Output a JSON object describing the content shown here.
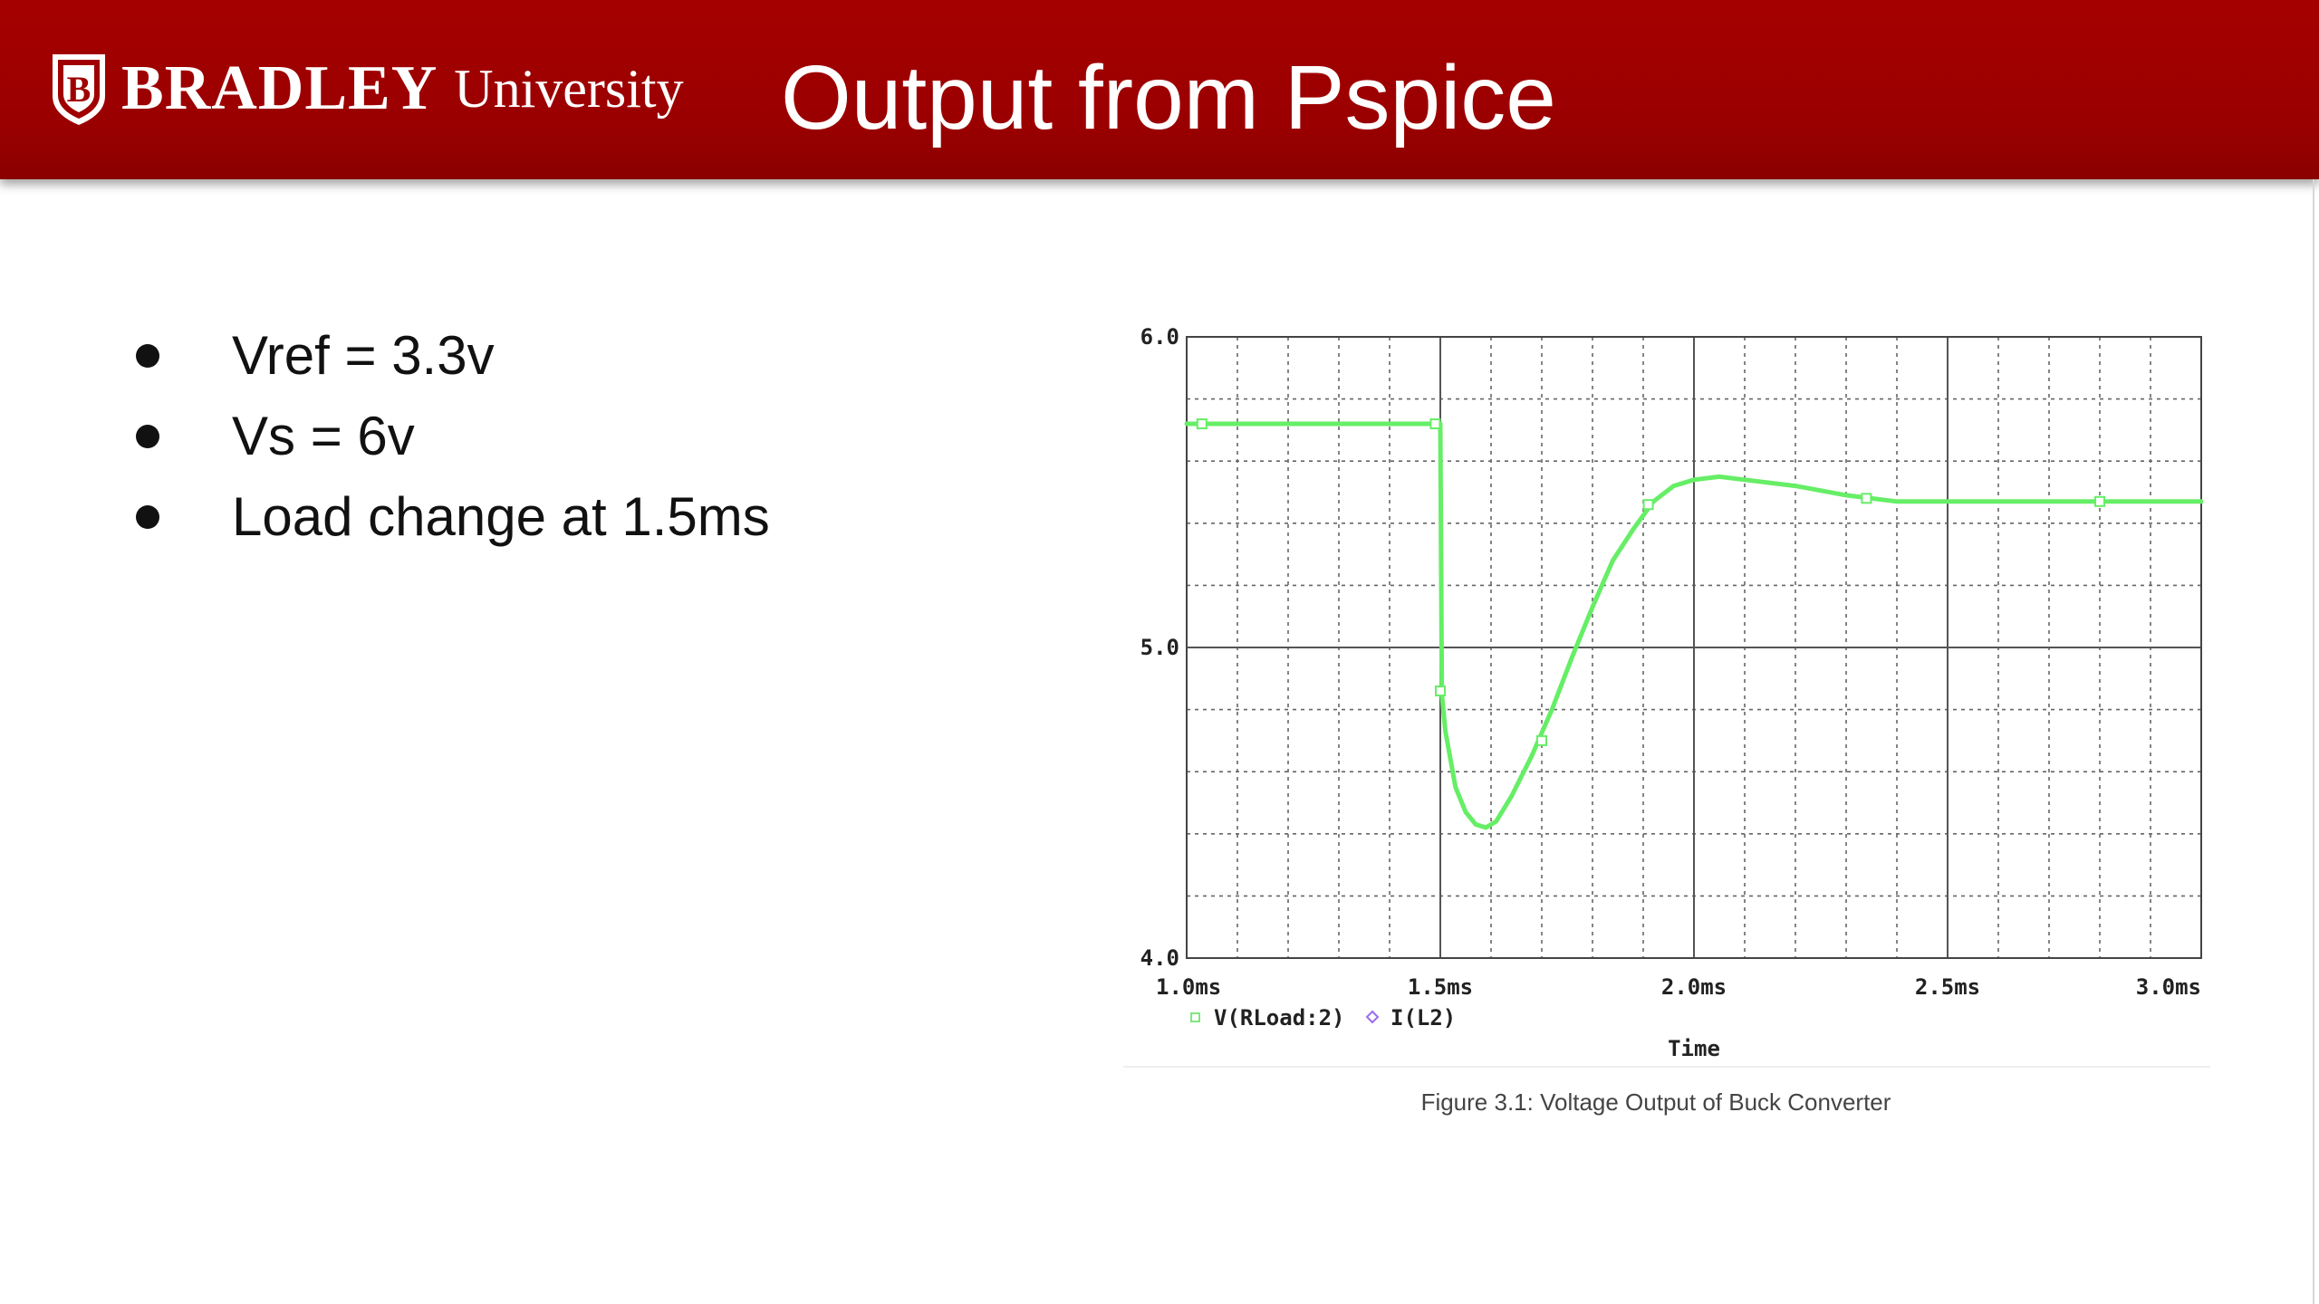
{
  "header": {
    "logo_bradley": "BRADLEY",
    "logo_university": "University",
    "logo_icon": "bradley-shield-icon",
    "title": "Output from Pspice",
    "background_color": "#a00000"
  },
  "bullets": [
    "Vref = 3.3v",
    "Vs = 6v",
    "Load change at 1.5ms"
  ],
  "chart_data": {
    "type": "line",
    "xlabel": "Time",
    "ylabel": "",
    "xlim": [
      1.0,
      3.0
    ],
    "ylim": [
      4.0,
      6.0
    ],
    "x_ticks": [
      1.0,
      1.5,
      2.0,
      2.5,
      3.0
    ],
    "x_tick_labels": [
      "1.0ms",
      "1.5ms",
      "2.0ms",
      "2.5ms",
      "3.0ms"
    ],
    "y_ticks": [
      4.0,
      5.0,
      6.0
    ],
    "y_tick_labels": [
      "4.0",
      "5.0",
      "6.0"
    ],
    "grid": true,
    "legend": [
      {
        "label": "V(RLoad:2)",
        "marker": "square",
        "color": "#7ee87e"
      },
      {
        "label": "I(L2)",
        "marker": "diamond",
        "color": "#9a6cf0"
      }
    ],
    "legend_position": "bottom-left",
    "series": [
      {
        "name": "V(RLoad:2)",
        "color": "#66ee66",
        "points": [
          [
            1.0,
            5.72
          ],
          [
            1.03,
            5.72
          ],
          [
            1.2,
            5.72
          ],
          [
            1.4,
            5.72
          ],
          [
            1.49,
            5.72
          ],
          [
            1.5,
            5.72
          ],
          [
            1.503,
            4.85
          ],
          [
            1.51,
            4.73
          ],
          [
            1.53,
            4.55
          ],
          [
            1.55,
            4.47
          ],
          [
            1.57,
            4.43
          ],
          [
            1.59,
            4.42
          ],
          [
            1.61,
            4.44
          ],
          [
            1.64,
            4.52
          ],
          [
            1.68,
            4.65
          ],
          [
            1.72,
            4.8
          ],
          [
            1.76,
            4.97
          ],
          [
            1.8,
            5.13
          ],
          [
            1.84,
            5.28
          ],
          [
            1.88,
            5.38
          ],
          [
            1.92,
            5.47
          ],
          [
            1.96,
            5.52
          ],
          [
            2.0,
            5.54
          ],
          [
            2.05,
            5.55
          ],
          [
            2.1,
            5.54
          ],
          [
            2.2,
            5.52
          ],
          [
            2.3,
            5.49
          ],
          [
            2.4,
            5.47
          ],
          [
            2.5,
            5.47
          ],
          [
            2.6,
            5.47
          ],
          [
            2.7,
            5.47
          ],
          [
            2.8,
            5.47
          ],
          [
            2.9,
            5.47
          ],
          [
            3.0,
            5.47
          ]
        ],
        "markers": [
          [
            1.03,
            5.72
          ],
          [
            1.49,
            5.72
          ],
          [
            1.5,
            4.86
          ],
          [
            1.7,
            4.7
          ],
          [
            1.91,
            5.46
          ],
          [
            2.34,
            5.48
          ],
          [
            2.8,
            5.47
          ]
        ]
      }
    ]
  },
  "caption": "Figure 3.1: Voltage Output of Buck Converter"
}
